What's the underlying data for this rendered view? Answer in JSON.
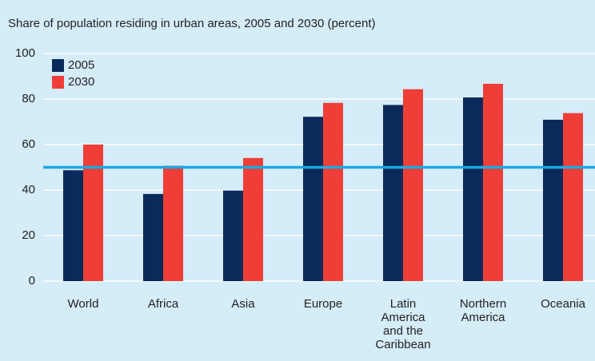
{
  "chart_data": {
    "type": "bar",
    "title": "Share of population residing in urban areas, 2005 and 2030 (percent)",
    "categories": [
      "World",
      "Africa",
      "Asia",
      "Europe",
      "Latin America and the Caribbean",
      "Northern America",
      "Oceania"
    ],
    "series": [
      {
        "name": "2005",
        "color": "#0b2a5c",
        "values": [
          48.7,
          38.3,
          39.8,
          72.2,
          77.4,
          80.7,
          70.9
        ]
      },
      {
        "name": "2030",
        "color": "#ee3e37",
        "values": [
          60,
          50.7,
          54.1,
          78.3,
          84.3,
          86.7,
          73.8
        ]
      }
    ],
    "ylim": [
      0,
      100
    ],
    "yticks": [
      0,
      20,
      40,
      60,
      80,
      100
    ],
    "grid": true,
    "reference_line": {
      "value": 50,
      "color": "#1aa9e1"
    },
    "legend": "top-left"
  }
}
